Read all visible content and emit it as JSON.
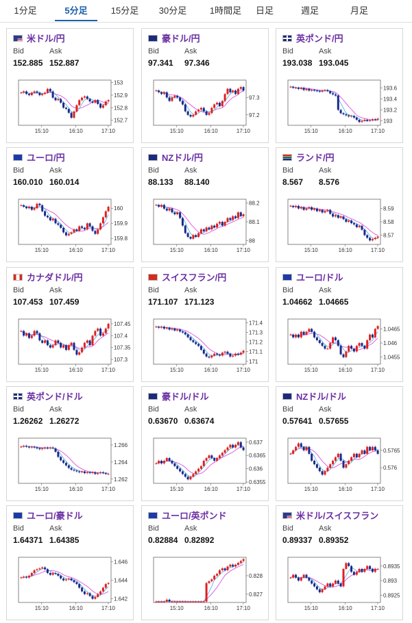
{
  "tabs": [
    {
      "label": "1分足",
      "active": false
    },
    {
      "label": "5分足",
      "active": true
    },
    {
      "label": "15分足",
      "active": false
    },
    {
      "label": "30分足",
      "active": false
    },
    {
      "label": "1時間足",
      "active": false
    },
    {
      "label": "日足",
      "active": false
    },
    {
      "label": "週足",
      "active": false
    },
    {
      "label": "月足",
      "active": false
    }
  ],
  "bid_label": "Bid",
  "ask_label": "Ask",
  "pairs": [
    {
      "name": "米ドル/円",
      "flag": "us",
      "bid": "152.885",
      "ask": "152.887",
      "chart_data": {
        "type": "candlestick",
        "x_ticks": [
          "15:10",
          "16:10",
          "17:10"
        ],
        "y_ticks": [
          "153",
          "152.9",
          "152.8",
          "152.7"
        ],
        "ylim": [
          152.66,
          153.02
        ],
        "values": [
          152.92,
          152.93,
          152.91,
          152.9,
          152.92,
          152.93,
          152.92,
          152.9,
          152.91,
          152.92,
          152.95,
          152.93,
          152.88,
          152.86,
          152.87,
          152.84,
          152.8,
          152.79,
          152.76,
          152.72,
          152.77,
          152.82,
          152.86,
          152.88,
          152.89,
          152.87,
          152.85,
          152.84,
          152.86,
          152.83,
          152.8,
          152.82,
          152.85,
          152.86
        ]
      }
    },
    {
      "name": "豪ドル/円",
      "flag": "au",
      "bid": "97.341",
      "ask": "97.346",
      "chart_data": {
        "type": "candlestick",
        "x_ticks": [
          "15:10",
          "16:10",
          "17:10"
        ],
        "y_ticks": [
          "97.3",
          "97.2"
        ],
        "ylim": [
          97.14,
          97.4
        ],
        "values": [
          97.34,
          97.33,
          97.32,
          97.33,
          97.3,
          97.28,
          97.3,
          97.31,
          97.3,
          97.28,
          97.26,
          97.22,
          97.2,
          97.19,
          97.2,
          97.22,
          97.23,
          97.24,
          97.22,
          97.2,
          97.21,
          97.24,
          97.26,
          97.27,
          97.25,
          97.28,
          97.32,
          97.35,
          97.33,
          97.34,
          97.32,
          97.35,
          97.36,
          97.34
        ]
      }
    },
    {
      "name": "英ポンド/円",
      "flag": "gb",
      "bid": "193.038",
      "ask": "193.045",
      "chart_data": {
        "type": "candlestick",
        "x_ticks": [
          "15:10",
          "16:10",
          "17:10"
        ],
        "y_ticks": [
          "193.6",
          "193.4",
          "193.2",
          "193"
        ],
        "ylim": [
          192.92,
          193.74
        ],
        "values": [
          193.62,
          193.6,
          193.6,
          193.58,
          193.6,
          193.56,
          193.58,
          193.55,
          193.56,
          193.55,
          193.54,
          193.53,
          193.55,
          193.56,
          193.54,
          193.5,
          193.48,
          193.46,
          193.2,
          193.14,
          193.12,
          193.1,
          193.08,
          193.09,
          193.06,
          193.02,
          192.98,
          193.0,
          193.02,
          193.0,
          193.01,
          193.03,
          193.02,
          193.04
        ]
      }
    },
    {
      "name": "ユーロ/円",
      "flag": "eu",
      "bid": "160.010",
      "ask": "160.014",
      "chart_data": {
        "type": "candlestick",
        "x_ticks": [
          "15:10",
          "16:10",
          "17:10"
        ],
        "y_ticks": [
          "160",
          "159.9",
          "159.8"
        ],
        "ylim": [
          159.76,
          160.06
        ],
        "values": [
          160.02,
          160.01,
          160.0,
          160.01,
          159.99,
          160.0,
          160.03,
          160.02,
          159.98,
          159.95,
          159.94,
          159.92,
          159.93,
          159.9,
          159.89,
          159.87,
          159.84,
          159.82,
          159.83,
          159.84,
          159.86,
          159.85,
          159.88,
          159.87,
          159.86,
          159.9,
          159.88,
          159.85,
          159.83,
          159.86,
          159.9,
          159.94,
          159.98,
          160.01
        ]
      }
    },
    {
      "name": "NZドル/円",
      "flag": "nz",
      "bid": "88.133",
      "ask": "88.140",
      "chart_data": {
        "type": "candlestick",
        "x_ticks": [
          "15:10",
          "16:10",
          "17:10"
        ],
        "y_ticks": [
          "88.2",
          "88.1",
          "88"
        ],
        "ylim": [
          87.98,
          88.22
        ],
        "values": [
          88.19,
          88.18,
          88.19,
          88.17,
          88.16,
          88.17,
          88.15,
          88.14,
          88.15,
          88.12,
          88.08,
          88.04,
          88.02,
          88.01,
          88.03,
          88.02,
          88.04,
          88.06,
          88.05,
          88.07,
          88.06,
          88.08,
          88.07,
          88.09,
          88.1,
          88.08,
          88.1,
          88.12,
          88.11,
          88.13,
          88.12,
          88.15,
          88.13,
          88.14
        ]
      }
    },
    {
      "name": "ランド/円",
      "flag": "za",
      "bid": "8.567",
      "ask": "8.576",
      "chart_data": {
        "type": "candlestick",
        "x_ticks": [
          "15:10",
          "16:10",
          "17:10"
        ],
        "y_ticks": [
          "8.59",
          "8.58",
          "8.57"
        ],
        "ylim": [
          8.563,
          8.597
        ],
        "values": [
          8.592,
          8.591,
          8.592,
          8.59,
          8.591,
          8.589,
          8.59,
          8.591,
          8.589,
          8.59,
          8.588,
          8.589,
          8.587,
          8.588,
          8.589,
          8.586,
          8.584,
          8.585,
          8.583,
          8.584,
          8.582,
          8.58,
          8.581,
          8.579,
          8.578,
          8.576,
          8.577,
          8.574,
          8.57,
          8.568,
          8.566,
          8.567,
          8.568,
          8.569
        ]
      }
    },
    {
      "name": "カナダドル/円",
      "flag": "ca",
      "bid": "107.453",
      "ask": "107.459",
      "chart_data": {
        "type": "candlestick",
        "x_ticks": [
          "15:10",
          "16:10",
          "17:10"
        ],
        "y_ticks": [
          "107.45",
          "107.4",
          "107.35",
          "107.3"
        ],
        "ylim": [
          107.28,
          107.47
        ],
        "values": [
          107.42,
          107.4,
          107.41,
          107.39,
          107.4,
          107.42,
          107.41,
          107.38,
          107.37,
          107.38,
          107.36,
          107.35,
          107.36,
          107.38,
          107.37,
          107.35,
          107.36,
          107.34,
          107.36,
          107.37,
          107.34,
          107.32,
          107.33,
          107.35,
          107.37,
          107.38,
          107.36,
          107.4,
          107.42,
          107.43,
          107.4,
          107.41,
          107.43,
          107.45
        ]
      }
    },
    {
      "name": "スイスフラン/円",
      "flag": "ch",
      "bid": "171.107",
      "ask": "171.123",
      "chart_data": {
        "type": "candlestick",
        "x_ticks": [
          "15:10",
          "16:10",
          "17:10"
        ],
        "y_ticks": [
          "171.4",
          "171.3",
          "171.2",
          "171.1",
          "171"
        ],
        "ylim": [
          170.97,
          171.44
        ],
        "values": [
          171.36,
          171.35,
          171.36,
          171.34,
          171.35,
          171.33,
          171.34,
          171.32,
          171.33,
          171.31,
          171.3,
          171.28,
          171.25,
          171.22,
          171.2,
          171.18,
          171.16,
          171.12,
          171.08,
          171.05,
          171.04,
          171.06,
          171.08,
          171.07,
          171.06,
          171.09,
          171.1,
          171.08,
          171.05,
          171.06,
          171.08,
          171.07,
          171.09,
          171.11
        ]
      }
    },
    {
      "name": "ユーロ/ドル",
      "flag": "eu",
      "bid": "1.04662",
      "ask": "1.04665",
      "chart_data": {
        "type": "candlestick",
        "x_ticks": [
          "15:10",
          "16:10",
          "17:10"
        ],
        "y_ticks": [
          "1.0465",
          "1.046",
          "1.0455"
        ],
        "ylim": [
          1.04525,
          1.04685
        ],
        "values": [
          1.0463,
          1.0462,
          1.0463,
          1.0462,
          1.0464,
          1.0463,
          1.0464,
          1.0465,
          1.0464,
          1.0462,
          1.0461,
          1.046,
          1.0459,
          1.0458,
          1.0458,
          1.046,
          1.0462,
          1.0461,
          1.0459,
          1.0456,
          1.0455,
          1.0457,
          1.0459,
          1.0458,
          1.0457,
          1.0459,
          1.046,
          1.0459,
          1.0458,
          1.0461,
          1.0463,
          1.0462,
          1.0465,
          1.0466
        ]
      }
    },
    {
      "name": "英ポンド/ドル",
      "flag": "gb",
      "bid": "1.26262",
      "ask": "1.26272",
      "chart_data": {
        "type": "candlestick",
        "x_ticks": [
          "15:10",
          "16:10",
          "17:10"
        ],
        "y_ticks": [
          "1.266",
          "1.264",
          "1.262"
        ],
        "ylim": [
          1.2615,
          1.2668
        ],
        "values": [
          1.2658,
          1.2659,
          1.2658,
          1.2657,
          1.2658,
          1.2657,
          1.2656,
          1.2655,
          1.2656,
          1.2657,
          1.2656,
          1.2657,
          1.2656,
          1.2652,
          1.2646,
          1.2642,
          1.2639,
          1.2636,
          1.2633,
          1.2631,
          1.263,
          1.2629,
          1.2628,
          1.2629,
          1.2627,
          1.2628,
          1.2627,
          1.2628,
          1.2626,
          1.2627,
          1.2628,
          1.2627,
          1.2626,
          1.2626
        ]
      }
    },
    {
      "name": "豪ドル/ドル",
      "flag": "au",
      "bid": "0.63670",
      "ask": "0.63674",
      "chart_data": {
        "type": "candlestick",
        "x_ticks": [
          "15:10",
          "16:10",
          "17:10"
        ],
        "y_ticks": [
          "0.637",
          "0.6365",
          "0.636",
          "0.6355"
        ],
        "ylim": [
          0.63545,
          0.63715
        ],
        "values": [
          0.6362,
          0.6363,
          0.6362,
          0.6363,
          0.6364,
          0.6363,
          0.6362,
          0.6361,
          0.636,
          0.6359,
          0.6358,
          0.6357,
          0.6356,
          0.6357,
          0.6358,
          0.6359,
          0.636,
          0.6361,
          0.6363,
          0.6364,
          0.6365,
          0.6364,
          0.6363,
          0.6364,
          0.6365,
          0.6366,
          0.6367,
          0.6368,
          0.6369,
          0.6368,
          0.6369,
          0.637,
          0.6368,
          0.6367
        ]
      }
    },
    {
      "name": "NZドル/ドル",
      "flag": "nz",
      "bid": "0.57641",
      "ask": "0.57655",
      "chart_data": {
        "type": "candlestick",
        "x_ticks": [
          "15:10",
          "16:10",
          "17:10"
        ],
        "y_ticks": [
          "0.5765",
          "0.576"
        ],
        "ylim": [
          0.57555,
          0.57685
        ],
        "values": [
          0.5764,
          0.5765,
          0.5766,
          0.5767,
          0.5766,
          0.5765,
          0.5766,
          0.5764,
          0.5762,
          0.5761,
          0.576,
          0.5759,
          0.5758,
          0.5759,
          0.576,
          0.5761,
          0.5762,
          0.5763,
          0.5764,
          0.5762,
          0.576,
          0.5761,
          0.5762,
          0.5763,
          0.5764,
          0.5763,
          0.5764,
          0.5765,
          0.5764,
          0.5766,
          0.5765,
          0.5766,
          0.5765,
          0.5764
        ]
      }
    },
    {
      "name": "ユーロ/豪ドル",
      "flag": "eu",
      "bid": "1.64371",
      "ask": "1.64385",
      "chart_data": {
        "type": "candlestick",
        "x_ticks": [
          "15:10",
          "16:10",
          "17:10"
        ],
        "y_ticks": [
          "1.646",
          "1.644",
          "1.642"
        ],
        "ylim": [
          1.6416,
          1.6465
        ],
        "values": [
          1.6443,
          1.6444,
          1.6443,
          1.6445,
          1.6448,
          1.6451,
          1.6452,
          1.6453,
          1.6454,
          1.6452,
          1.6448,
          1.6446,
          1.6448,
          1.6447,
          1.6445,
          1.6442,
          1.644,
          1.6441,
          1.6442,
          1.644,
          1.6438,
          1.6436,
          1.6432,
          1.6428,
          1.6425,
          1.6426,
          1.6423,
          1.642,
          1.6422,
          1.6425,
          1.6428,
          1.6432,
          1.6436,
          1.6437
        ]
      }
    },
    {
      "name": "ユーロ/英ポンド",
      "flag": "eu",
      "bid": "0.82884",
      "ask": "0.82892",
      "chart_data": {
        "type": "candlestick",
        "x_ticks": [
          "15:10",
          "16:10",
          "17:10"
        ],
        "y_ticks": [
          "0.828",
          "0.827"
        ],
        "ylim": [
          0.82655,
          0.829
        ],
        "values": [
          0.8266,
          0.8266,
          0.8266,
          0.8266,
          0.8267,
          0.8266,
          0.8266,
          0.8266,
          0.8266,
          0.8266,
          0.8266,
          0.8266,
          0.8266,
          0.8266,
          0.8266,
          0.8266,
          0.8266,
          0.8266,
          0.8266,
          0.8276,
          0.8277,
          0.8278,
          0.828,
          0.8281,
          0.8283,
          0.8284,
          0.8283,
          0.8285,
          0.8286,
          0.8285,
          0.8286,
          0.8287,
          0.8288,
          0.8289
        ]
      }
    },
    {
      "name": "米ドル/スイスフラン",
      "flag": "us",
      "bid": "0.89337",
      "ask": "0.89352",
      "chart_data": {
        "type": "candlestick",
        "x_ticks": [
          "15:10",
          "16:10",
          "17:10"
        ],
        "y_ticks": [
          "0.8935",
          "0.893",
          "0.8925"
        ],
        "ylim": [
          0.89225,
          0.8938
        ],
        "values": [
          0.8931,
          0.8932,
          0.8931,
          0.893,
          0.8931,
          0.8932,
          0.8931,
          0.893,
          0.8929,
          0.8928,
          0.8927,
          0.8926,
          0.8927,
          0.8928,
          0.8929,
          0.8928,
          0.8929,
          0.893,
          0.8929,
          0.8928,
          0.8934,
          0.8936,
          0.8935,
          0.8933,
          0.8932,
          0.8933,
          0.8934,
          0.8933,
          0.8934,
          0.8935,
          0.8934,
          0.8933,
          0.8934,
          0.8934
        ]
      }
    }
  ]
}
